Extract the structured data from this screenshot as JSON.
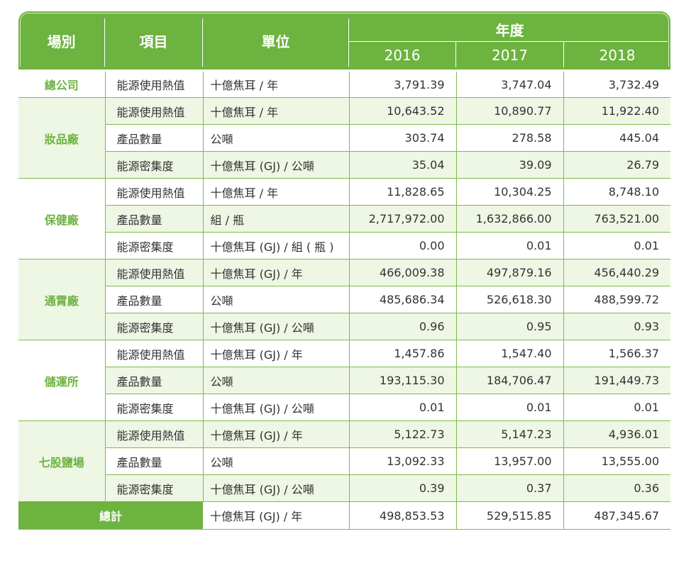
{
  "header": {
    "site": "場別",
    "item": "項目",
    "unit": "單位",
    "year_group": "年度",
    "years": [
      "2016",
      "2017",
      "2018"
    ]
  },
  "rows": [
    {
      "site": "總公司",
      "item": "能源使用熱值",
      "unit": "十億焦耳 / 年",
      "v2016": "3,791.39",
      "v2017": "3,747.04",
      "v2018": "3,732.49"
    },
    {
      "site": "妝品廠",
      "item": "能源使用熱值",
      "unit": "十億焦耳 / 年",
      "v2016": "10,643.52",
      "v2017": "10,890.77",
      "v2018": "11,922.40"
    },
    {
      "site": "",
      "item": "產品數量",
      "unit": "公噸",
      "v2016": "303.74",
      "v2017": "278.58",
      "v2018": "445.04"
    },
    {
      "site": "",
      "item": "能源密集度",
      "unit": "十億焦耳 (GJ) / 公噸",
      "v2016": "35.04",
      "v2017": "39.09",
      "v2018": "26.79"
    },
    {
      "site": "保健廠",
      "item": "能源使用熱值",
      "unit": "十億焦耳 / 年",
      "v2016": "11,828.65",
      "v2017": "10,304.25",
      "v2018": "8,748.10"
    },
    {
      "site": "",
      "item": "產品數量",
      "unit": "組 / 瓶",
      "v2016": "2,717,972.00",
      "v2017": "1,632,866.00",
      "v2018": "763,521.00"
    },
    {
      "site": "",
      "item": "能源密集度",
      "unit": "十億焦耳 (GJ) / 組 ( 瓶 )",
      "v2016": "0.00",
      "v2017": "0.01",
      "v2018": "0.01"
    },
    {
      "site": "通霄廠",
      "item": "能源使用熱值",
      "unit": "十億焦耳 (GJ) / 年",
      "v2016": "466,009.38",
      "v2017": "497,879.16",
      "v2018": "456,440.29"
    },
    {
      "site": "",
      "item": "產品數量",
      "unit": "公噸",
      "v2016": "485,686.34",
      "v2017": "526,618.30",
      "v2018": "488,599.72"
    },
    {
      "site": "",
      "item": "能源密集度",
      "unit": "十億焦耳 (GJ) / 公噸",
      "v2016": "0.96",
      "v2017": "0.95",
      "v2018": "0.93"
    },
    {
      "site": "儲運所",
      "item": "能源使用熱值",
      "unit": "十億焦耳 (GJ) / 年",
      "v2016": "1,457.86",
      "v2017": "1,547.40",
      "v2018": "1,566.37"
    },
    {
      "site": "",
      "item": "產品數量",
      "unit": "公噸",
      "v2016": "193,115.30",
      "v2017": "184,706.47",
      "v2018": "191,449.73"
    },
    {
      "site": "",
      "item": "能源密集度",
      "unit": "十億焦耳 (GJ) / 公噸",
      "v2016": "0.01",
      "v2017": "0.01",
      "v2018": "0.01"
    },
    {
      "site": "七股鹽場",
      "item": "能源使用熱值",
      "unit": "十億焦耳 (GJ) / 年",
      "v2016": "5,122.73",
      "v2017": "5,147.23",
      "v2018": "4,936.01"
    },
    {
      "site": "",
      "item": "產品數量",
      "unit": "公噸",
      "v2016": "13,092.33",
      "v2017": "13,957.00",
      "v2018": "13,555.00"
    },
    {
      "site": "",
      "item": "能源密集度",
      "unit": "十億焦耳 (GJ) / 公噸",
      "v2016": "0.39",
      "v2017": "0.37",
      "v2018": "0.36"
    }
  ],
  "total": {
    "label": "總計",
    "unit": "十億焦耳 (GJ) / 年",
    "v2016": "498,853.53",
    "v2017": "529,515.85",
    "v2018": "487,345.67"
  },
  "colors": {
    "accent": "#6db33f",
    "shade": "#eef6e4"
  }
}
